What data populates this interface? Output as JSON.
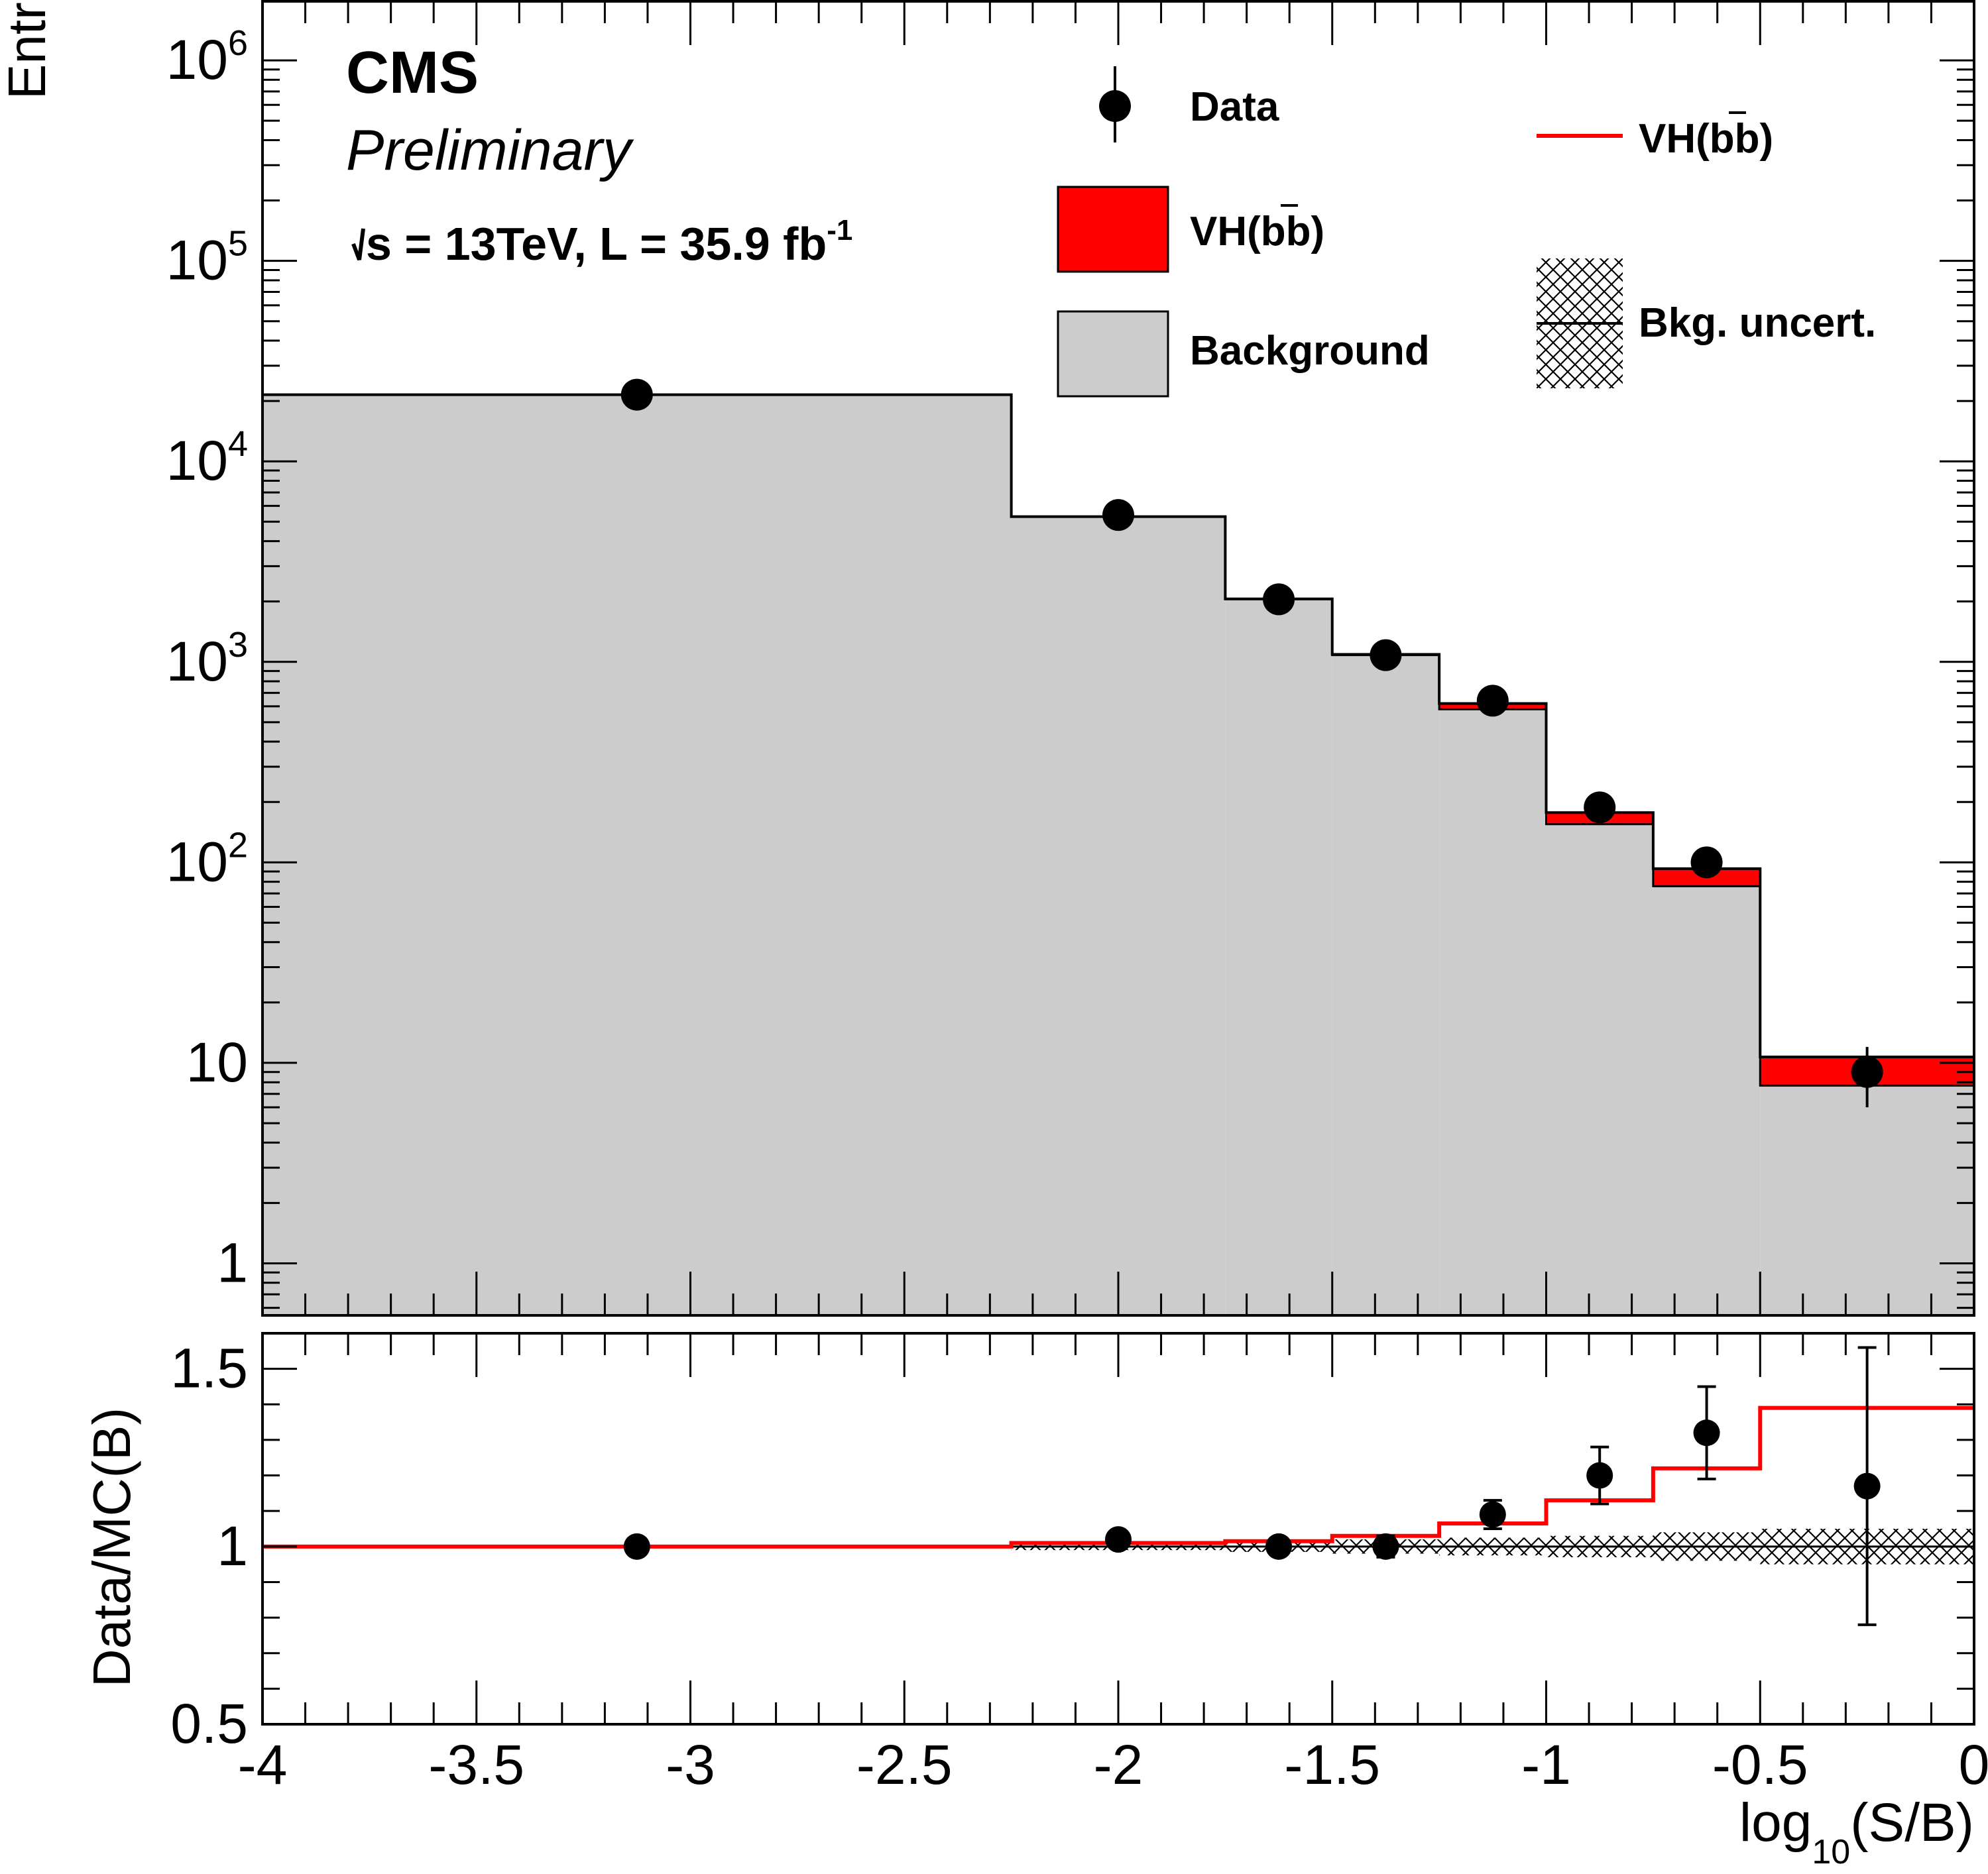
{
  "labels": {
    "experiment": "CMS",
    "status": "Preliminary",
    "energy_lumi_prefix": "s =  13TeV, L = 35.9 fb",
    "energy_lumi_sup": "-1"
  },
  "legend": {
    "data": "Data",
    "signal_fill": "VH(bb)",
    "background": "Background",
    "signal_line": "VH(bb)",
    "bkg_uncert": "Bkg. uncert."
  },
  "colors": {
    "signal": "#ff0000",
    "background": "#cccccc",
    "data": "#000000"
  },
  "chart_data": [
    {
      "type": "bar",
      "panel": "main",
      "stacked": true,
      "log_y": true,
      "ylabel": "Entries",
      "xlim": [
        -4,
        0
      ],
      "ylim": [
        0.55,
        2000000
      ],
      "y_tick_labels": [
        "1",
        "10",
        "10^2",
        "10^3",
        "10^4",
        "10^5",
        "10^6"
      ],
      "bin_edges": [
        -4,
        -2.25,
        -1.75,
        -1.5,
        -1.25,
        -1,
        -0.75,
        -0.5,
        0
      ],
      "series": [
        {
          "name": "Background",
          "values": [
            21500,
            5300,
            2050,
            1080,
            580,
            155,
            76,
            7.7
          ]
        },
        {
          "name": "VH(bb)",
          "values": [
            0,
            0,
            10,
            10,
            40,
            22,
            17,
            3.0
          ]
        },
        {
          "name": "Data",
          "x": [
            -3.125,
            -2.0,
            -1.625,
            -1.375,
            -1.125,
            -0.875,
            -0.625,
            -0.25
          ],
          "values": [
            21500,
            5400,
            2050,
            1080,
            640,
            188,
            100,
            9
          ],
          "err_low": [
            150,
            75,
            45,
            33,
            25,
            14,
            10,
            3
          ],
          "err_high": [
            150,
            75,
            45,
            33,
            25,
            14,
            10,
            3
          ]
        }
      ]
    },
    {
      "type": "line",
      "panel": "ratio",
      "xlabel": "log10(S/B)",
      "ylabel": "Data/MC(B)",
      "xlim": [
        -4,
        0
      ],
      "ylim": [
        0.5,
        1.6
      ],
      "x_tick_labels": [
        "-4",
        "-3.5",
        "-3",
        "-2.5",
        "-2",
        "-1.5",
        "-1",
        "-0.5",
        "0"
      ],
      "y_tick_labels": [
        "0.5",
        "1",
        "1.5"
      ],
      "bin_edges": [
        -4,
        -2.25,
        -1.75,
        -1.5,
        -1.25,
        -1,
        -0.75,
        -0.5,
        0
      ],
      "series": [
        {
          "name": "VH(bb)",
          "values": [
            1.0,
            1.01,
            1.015,
            1.03,
            1.065,
            1.13,
            1.22,
            1.39
          ]
        },
        {
          "name": "Bkg. uncert.",
          "values": [
            0.005,
            0.01,
            0.015,
            0.02,
            0.025,
            0.03,
            0.04,
            0.05
          ]
        },
        {
          "name": "Data",
          "x": [
            -3.125,
            -2.0,
            -1.625,
            -1.375,
            -1.125,
            -0.875,
            -0.625,
            -0.25
          ],
          "values": [
            1.0,
            1.02,
            1.0,
            1.0,
            1.09,
            1.2,
            1.32,
            1.17
          ],
          "err_low": [
            0.01,
            0.015,
            0.02,
            0.03,
            0.04,
            0.08,
            0.13,
            0.39
          ],
          "err_high": [
            0.01,
            0.015,
            0.02,
            0.03,
            0.04,
            0.08,
            0.13,
            0.39
          ]
        }
      ]
    }
  ]
}
